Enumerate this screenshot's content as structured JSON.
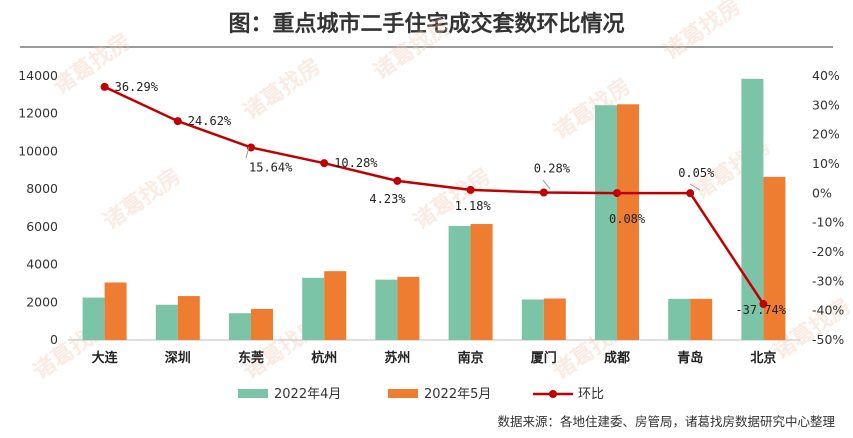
{
  "chart_data": {
    "type": "bar",
    "title": "图：重点城市二手住宅成交套数环比情况",
    "categories": [
      "大连",
      "深圳",
      "东莞",
      "杭州",
      "苏州",
      "南京",
      "厦门",
      "成都",
      "青岛",
      "北京"
    ],
    "series": [
      {
        "name": "2022年4月",
        "type": "bar",
        "axis": "left",
        "color": "#7cc4a8",
        "values": [
          2250,
          1870,
          1420,
          3300,
          3200,
          6050,
          2150,
          12450,
          2180,
          13850
        ]
      },
      {
        "name": "2022年5月",
        "type": "bar",
        "axis": "left",
        "color": "#ee7d31",
        "values": [
          3050,
          2330,
          1650,
          3650,
          3350,
          6150,
          2200,
          12500,
          2180,
          8650
        ]
      },
      {
        "name": "环比",
        "type": "line",
        "axis": "right",
        "color": "#c00000",
        "values": [
          36.29,
          24.62,
          15.64,
          10.28,
          4.23,
          1.18,
          0.28,
          0.08,
          0.05,
          -37.74
        ],
        "labels": [
          "36.29%",
          "24.62%",
          "15.64%",
          "10.28%",
          "4.23%",
          "1.18%",
          "0.28%",
          "0.08%",
          "0.05%",
          "-37.74%"
        ]
      }
    ],
    "y_left": {
      "min": 0,
      "max": 14000,
      "step": 2000,
      "ticks": [
        "0",
        "2000",
        "4000",
        "6000",
        "8000",
        "10000",
        "12000",
        "14000"
      ]
    },
    "y_right": {
      "min": -50,
      "max": 40,
      "step": 10,
      "ticks": [
        "-50%",
        "-40%",
        "-30%",
        "-20%",
        "-10%",
        "0%",
        "10%",
        "20%",
        "30%",
        "40%"
      ]
    },
    "legend_position": "bottom",
    "grid": false
  },
  "watermark": "诸葛找房",
  "source": "数据来源：各地住建委、房管局，诸葛找房数据研究中心整理"
}
